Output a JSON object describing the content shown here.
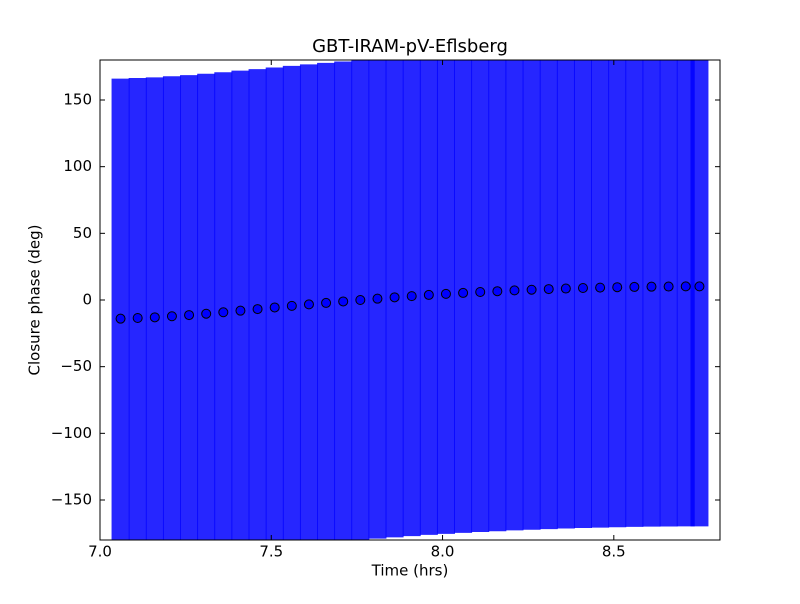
{
  "chart_data": {
    "type": "errorbar",
    "title": "GBT-IRAM-pV-Eflsberg",
    "xlabel": "Time (hrs)",
    "ylabel": "Closure phase (deg)",
    "xlim": [
      7.0,
      8.81
    ],
    "ylim": [
      -180,
      180
    ],
    "xticks": [
      {
        "value": 7,
        "label": "7.0"
      },
      7.5,
      {
        "value": 8,
        "label": "8.0"
      },
      8.5
    ],
    "yticks": [
      {
        "value": -150,
        "label": "−150"
      },
      {
        "value": -100,
        "label": "−100"
      },
      {
        "value": -50,
        "label": "−50"
      },
      0,
      50,
      100,
      150
    ],
    "color": "#0000ff",
    "marker_edge_color": "#000000",
    "x": [
      7.06,
      7.11,
      7.16,
      7.21,
      7.26,
      7.31,
      7.36,
      7.41,
      7.46,
      7.51,
      7.56,
      7.61,
      7.66,
      7.71,
      7.76,
      7.81,
      7.86,
      7.91,
      7.96,
      8.01,
      8.06,
      8.11,
      8.16,
      8.21,
      8.26,
      8.31,
      8.36,
      8.41,
      8.46,
      8.51,
      8.56,
      8.61,
      8.66,
      8.71,
      8.75
    ],
    "values": [
      -14,
      -13.5,
      -13,
      -12.2,
      -11.3,
      -10.3,
      -9.2,
      -8,
      -6.8,
      -5.6,
      -4.4,
      -3.3,
      -2.2,
      -1.1,
      0,
      1,
      2,
      2.9,
      3.8,
      4.6,
      5.3,
      6,
      6.6,
      7.2,
      7.7,
      8.2,
      8.6,
      9,
      9.3,
      9.6,
      9.8,
      10,
      10.1,
      10.2,
      10.2
    ],
    "errors": [
      180,
      180,
      180,
      180,
      180,
      180,
      180,
      180,
      180,
      180,
      180,
      180,
      180,
      180,
      180,
      180,
      180,
      180,
      180,
      180,
      180,
      180,
      180,
      180,
      180,
      180,
      180,
      180,
      180,
      180,
      180,
      180,
      180,
      180,
      180
    ]
  }
}
